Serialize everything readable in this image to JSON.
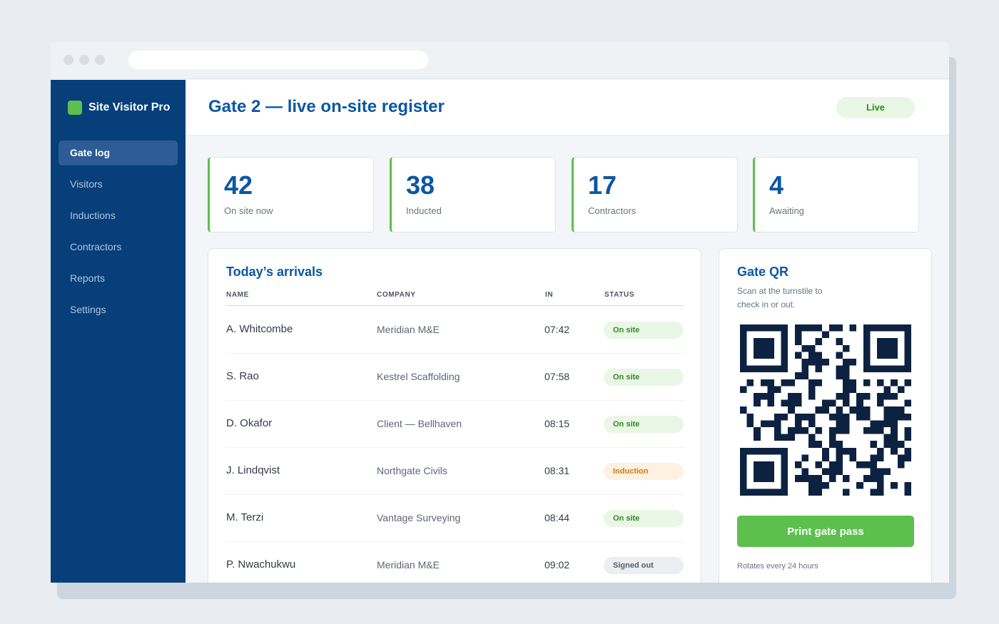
{
  "app": {
    "name": "Site Visitor Pro",
    "brand_color": "#5cbf4e",
    "primary_color": "#063f7a"
  },
  "sidebar": {
    "items": [
      {
        "label": "Gate log",
        "active": true
      },
      {
        "label": "Visitors"
      },
      {
        "label": "Inductions"
      },
      {
        "label": "Contractors"
      },
      {
        "label": "Reports"
      },
      {
        "label": "Settings"
      }
    ]
  },
  "header": {
    "title": "Gate 2 — live on-site register",
    "status": "Live"
  },
  "stats": [
    {
      "value": "42",
      "label": "On site now"
    },
    {
      "value": "38",
      "label": "Inducted"
    },
    {
      "value": "17",
      "label": "Contractors"
    },
    {
      "value": "4",
      "label": "Awaiting"
    }
  ],
  "arrivals": {
    "title": "Today’s arrivals",
    "columns": {
      "name": "NAME",
      "company": "COMPANY",
      "in": "IN",
      "status": "STATUS"
    },
    "rows": [
      {
        "name": "A. Whitcombe",
        "company": "Meridian M&E",
        "in": "07:42",
        "status": "On site",
        "status_kind": "onsite"
      },
      {
        "name": "S. Rao",
        "company": "Kestrel Scaffolding",
        "in": "07:58",
        "status": "On site",
        "status_kind": "onsite"
      },
      {
        "name": "D. Okafor",
        "company": "Client — Bellhaven",
        "in": "08:15",
        "status": "On site",
        "status_kind": "onsite"
      },
      {
        "name": "J. Lindqvist",
        "company": "Northgate Civils",
        "in": "08:31",
        "status": "Induction",
        "status_kind": "induction"
      },
      {
        "name": "M. Terzi",
        "company": "Vantage Surveying",
        "in": "08:44",
        "status": "On site",
        "status_kind": "onsite"
      },
      {
        "name": "P. Nwachukwu",
        "company": "Meridian M&E",
        "in": "09:02",
        "status": "Signed out",
        "status_kind": "signedout"
      }
    ]
  },
  "qr": {
    "title": "Gate QR",
    "subtitle": "Scan at the turnstile to check in or out.",
    "button_label": "Print gate pass",
    "footnote": "Rotates every 24 hours",
    "module_color": "#0d2240"
  }
}
